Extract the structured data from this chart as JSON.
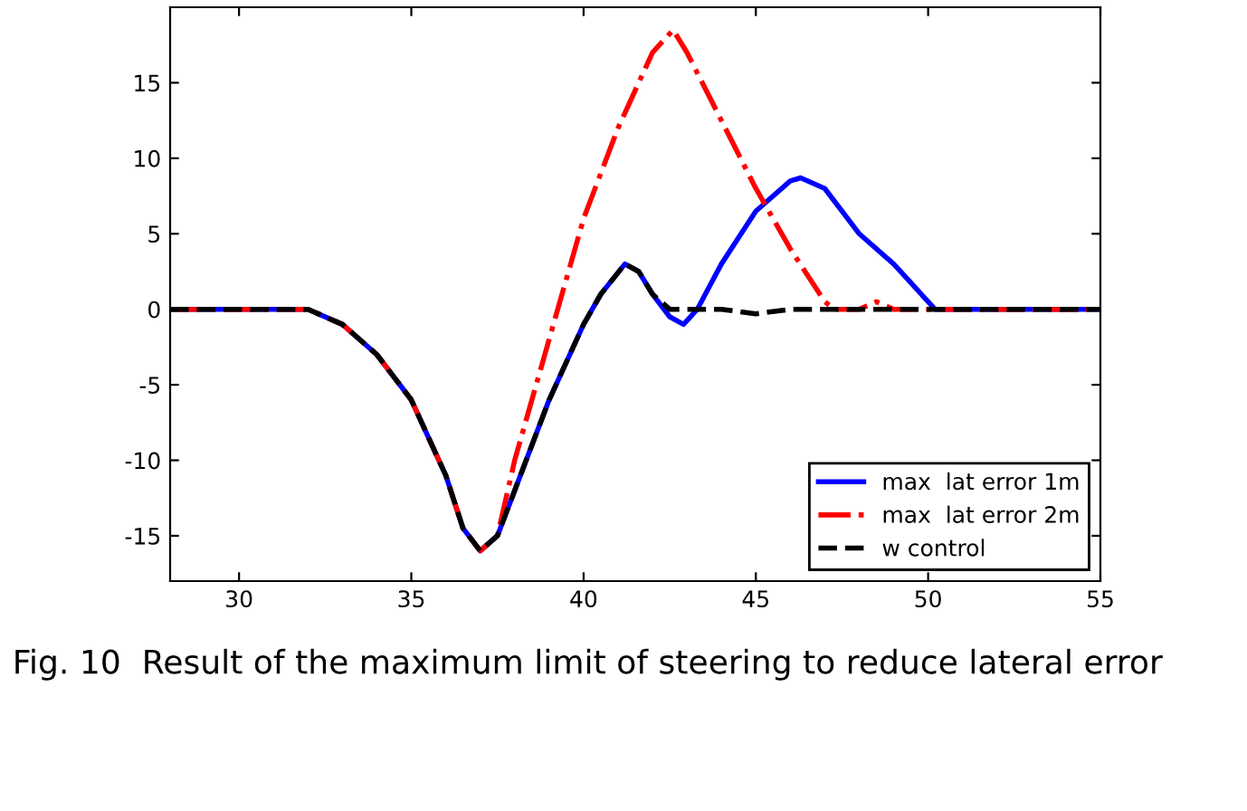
{
  "chart_data": {
    "type": "line",
    "xlim": [
      28,
      55
    ],
    "ylim": [
      -18,
      20
    ],
    "xticks": [
      30,
      35,
      40,
      45,
      50,
      55
    ],
    "yticks": [
      -15,
      -10,
      -5,
      0,
      5,
      10,
      15
    ],
    "grid": false,
    "legend": "bottom right",
    "series": [
      {
        "name": "max  lat error 1m",
        "color": "#0000ff",
        "line_style": "solid",
        "x": [
          28,
          32,
          33,
          34,
          35,
          36,
          36.5,
          37,
          37.5,
          38,
          39,
          40,
          40.5,
          41.2,
          41.6,
          42,
          42.5,
          42.9,
          43.3,
          44,
          45,
          46,
          46.3,
          47,
          48,
          49,
          50.2,
          55
        ],
        "values": [
          0,
          0,
          -1,
          -3,
          -6,
          -11,
          -14.5,
          -16,
          -15,
          -12,
          -6,
          -1,
          1,
          3,
          2.5,
          1,
          -0.5,
          -1,
          0,
          3,
          6.5,
          8.5,
          8.7,
          8,
          5,
          3,
          0,
          0
        ]
      },
      {
        "name": "max  lat error 2m",
        "color": "#ff0000",
        "line_style": "dashdot",
        "x": [
          28,
          32,
          33,
          34,
          35,
          36,
          36.5,
          37,
          37.5,
          38,
          39,
          40,
          41,
          42,
          42.6,
          43,
          44,
          45,
          46,
          47,
          47.3,
          48,
          48.5,
          49,
          55
        ],
        "values": [
          0,
          0,
          -1,
          -3,
          -6,
          -11,
          -14.5,
          -16,
          -15,
          -10,
          -2,
          6,
          12,
          17,
          18.5,
          17,
          12.5,
          8,
          4,
          0.5,
          0,
          0,
          0.5,
          0,
          0
        ]
      },
      {
        "name": "w control",
        "color": "#000000",
        "line_style": "dashed",
        "x": [
          28,
          32,
          33,
          34,
          35,
          36,
          36.5,
          37,
          37.5,
          38,
          39,
          40,
          40.5,
          41.2,
          41.6,
          42,
          42.5,
          43,
          44,
          45,
          46,
          47,
          48,
          49,
          55
        ],
        "values": [
          0,
          0,
          -1,
          -3,
          -6,
          -11,
          -14.5,
          -16,
          -15,
          -12,
          -6,
          -1,
          1,
          3,
          2.5,
          1,
          0,
          0,
          0,
          -0.3,
          0,
          0,
          0,
          0,
          0
        ]
      }
    ],
    "annotations": [
      "Fig. 10  Result of the maximum limit of steering to reduce lateral error"
    ]
  }
}
